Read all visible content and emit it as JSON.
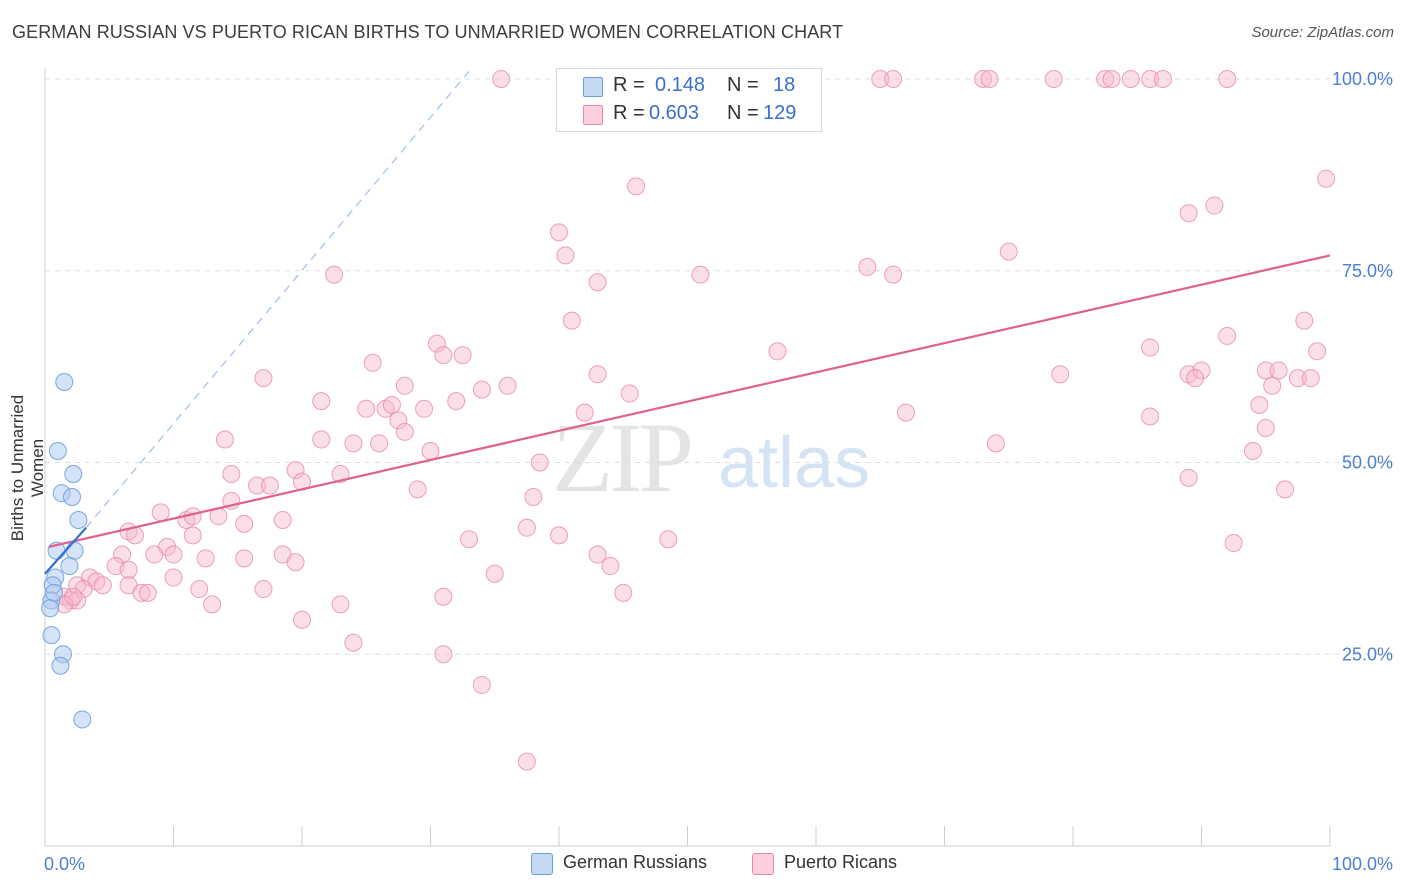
{
  "header": {
    "title": "GERMAN RUSSIAN VS PUERTO RICAN BIRTHS TO UNMARRIED WOMEN CORRELATION CHART",
    "source": "Source: ZipAtlas.com"
  },
  "watermark": {
    "zip": "ZIP",
    "atlas": "atlas"
  },
  "legend_top": {
    "row1": {
      "r_label": "R =",
      "r_value": "0.148",
      "n_label": "N =",
      "n_value": "18"
    },
    "row2": {
      "r_label": "R =",
      "r_value": "0.603",
      "n_label": "N =",
      "n_value": "129"
    }
  },
  "legend_bottom": {
    "series1": "German Russians",
    "series2": "Puerto Ricans"
  },
  "colors": {
    "blue_fill": "#a9c8f0",
    "blue_stroke": "#6a9de0",
    "blue_line": "#2f6fd6",
    "pink_fill": "#f7b8cb",
    "pink_stroke": "#e98aa8",
    "pink_line": "#e06090",
    "axis_label": "#4a7fd1",
    "grid": "#dddddd"
  },
  "chart_data": {
    "type": "scatter",
    "title": "GERMAN RUSSIAN VS PUERTO RICAN BIRTHS TO UNMARRIED WOMEN CORRELATION CHART",
    "xlabel": "",
    "ylabel": "Births to Unmarried Women",
    "xlim": [
      0,
      100
    ],
    "ylim": [
      0,
      102
    ],
    "x_tick_labels": [
      "0.0%",
      "100.0%"
    ],
    "y_tick_labels": [
      "25.0%",
      "50.0%",
      "75.0%",
      "100.0%"
    ],
    "y_ticks": [
      25,
      50,
      75,
      100
    ],
    "series": [
      {
        "name": "German Russians",
        "R": 0.148,
        "N": 18,
        "trend": {
          "x": [
            0,
            3.2
          ],
          "y": [
            35.5,
            41.5
          ],
          "dashed_extension": {
            "x": [
              3.2,
              33
            ],
            "y": [
              41.5,
              101
            ]
          }
        },
        "points": [
          [
            1.5,
            60.5
          ],
          [
            1.0,
            51.5
          ],
          [
            2.2,
            48.5
          ],
          [
            1.3,
            46.0
          ],
          [
            2.1,
            45.5
          ],
          [
            2.6,
            42.5
          ],
          [
            2.3,
            38.5
          ],
          [
            0.9,
            38.5
          ],
          [
            1.9,
            36.5
          ],
          [
            0.8,
            35.0
          ],
          [
            0.6,
            34.0
          ],
          [
            0.5,
            32.0
          ],
          [
            0.7,
            33.0
          ],
          [
            0.4,
            31.0
          ],
          [
            0.5,
            27.5
          ],
          [
            1.4,
            25.0
          ],
          [
            1.2,
            23.5
          ],
          [
            2.9,
            16.5
          ]
        ]
      },
      {
        "name": "Puerto Ricans",
        "R": 0.603,
        "N": 129,
        "trend": {
          "x": [
            0.3,
            100
          ],
          "y": [
            39,
            77
          ]
        },
        "points": [
          [
            35.5,
            100
          ],
          [
            65,
            100
          ],
          [
            66,
            100
          ],
          [
            73,
            100
          ],
          [
            73.5,
            100
          ],
          [
            78.5,
            100
          ],
          [
            82.5,
            100
          ],
          [
            83,
            100
          ],
          [
            84.5,
            100
          ],
          [
            86,
            100
          ],
          [
            87,
            100
          ],
          [
            92,
            100
          ],
          [
            99.7,
            87
          ],
          [
            46,
            86
          ],
          [
            91,
            83.5
          ],
          [
            89,
            82.5
          ],
          [
            40,
            80
          ],
          [
            40.5,
            77
          ],
          [
            75,
            77.5
          ],
          [
            22.5,
            74.5
          ],
          [
            43,
            73.5
          ],
          [
            51,
            74.5
          ],
          [
            64,
            75.5
          ],
          [
            66,
            74.5
          ],
          [
            41,
            68.5
          ],
          [
            92,
            66.5
          ],
          [
            98,
            68.5
          ],
          [
            30.5,
            65.5
          ],
          [
            31,
            64
          ],
          [
            32.5,
            64
          ],
          [
            57,
            64.5
          ],
          [
            86,
            65
          ],
          [
            99,
            64.5
          ],
          [
            25.5,
            63
          ],
          [
            79,
            61.5
          ],
          [
            89,
            61.5
          ],
          [
            90,
            62
          ],
          [
            95,
            62
          ],
          [
            96,
            62
          ],
          [
            97.5,
            61
          ],
          [
            98.5,
            61
          ],
          [
            17,
            61
          ],
          [
            28,
            60
          ],
          [
            36,
            60
          ],
          [
            34,
            59.5
          ],
          [
            43,
            61.5
          ],
          [
            45.5,
            59
          ],
          [
            89.5,
            61
          ],
          [
            95.5,
            60
          ],
          [
            21.5,
            58
          ],
          [
            25,
            57
          ],
          [
            26.5,
            57
          ],
          [
            27,
            57.5
          ],
          [
            29.5,
            57
          ],
          [
            32,
            58
          ],
          [
            42,
            56.5
          ],
          [
            67,
            56.5
          ],
          [
            86,
            56
          ],
          [
            94.5,
            57.5
          ],
          [
            27.5,
            55.5
          ],
          [
            28,
            54
          ],
          [
            14,
            53
          ],
          [
            21.5,
            53
          ],
          [
            24,
            52.5
          ],
          [
            26,
            52.5
          ],
          [
            30,
            51.5
          ],
          [
            74,
            52.5
          ],
          [
            95,
            54.5
          ],
          [
            94,
            51.5
          ],
          [
            38.5,
            50
          ],
          [
            14.5,
            48.5
          ],
          [
            19.5,
            49
          ],
          [
            23,
            48.5
          ],
          [
            16.5,
            47
          ],
          [
            17.5,
            47
          ],
          [
            20,
            47.5
          ],
          [
            89,
            48
          ],
          [
            96.5,
            46.5
          ],
          [
            29,
            46.5
          ],
          [
            38,
            45.5
          ],
          [
            14.5,
            45
          ],
          [
            9,
            43.5
          ],
          [
            11,
            42.5
          ],
          [
            11.5,
            43
          ],
          [
            13.5,
            43
          ],
          [
            15.5,
            42
          ],
          [
            18.5,
            42.5
          ],
          [
            6.5,
            41
          ],
          [
            7,
            40.5
          ],
          [
            11.5,
            40.5
          ],
          [
            37.5,
            41.5
          ],
          [
            40,
            40.5
          ],
          [
            48.5,
            40
          ],
          [
            33,
            40
          ],
          [
            9.5,
            39
          ],
          [
            6,
            38
          ],
          [
            8.5,
            38
          ],
          [
            10,
            38
          ],
          [
            12.5,
            37.5
          ],
          [
            15.5,
            37.5
          ],
          [
            18.5,
            38
          ],
          [
            19.5,
            37
          ],
          [
            43,
            38
          ],
          [
            92.5,
            39.5
          ],
          [
            5.5,
            36.5
          ],
          [
            6.5,
            36
          ],
          [
            10,
            35
          ],
          [
            3.5,
            35
          ],
          [
            4,
            34.5
          ],
          [
            2.5,
            34
          ],
          [
            4.5,
            34
          ],
          [
            6.5,
            34
          ],
          [
            3,
            33.5
          ],
          [
            7.5,
            33
          ],
          [
            12,
            33.5
          ],
          [
            17,
            33.5
          ],
          [
            8,
            33
          ],
          [
            1.5,
            32.5
          ],
          [
            2,
            32
          ],
          [
            2.5,
            32
          ],
          [
            1.5,
            31.5
          ],
          [
            2.2,
            32.5
          ],
          [
            13,
            31.5
          ],
          [
            23,
            31.5
          ],
          [
            31,
            32.5
          ],
          [
            35,
            35.5
          ],
          [
            44,
            36.5
          ],
          [
            45,
            33
          ],
          [
            20,
            29.5
          ],
          [
            24,
            26.5
          ],
          [
            31,
            25
          ],
          [
            34,
            21
          ],
          [
            37.5,
            11
          ]
        ]
      }
    ]
  },
  "axes": {
    "y_tick_labels": [
      "100.0%",
      "75.0%",
      "50.0%",
      "25.0%"
    ],
    "x_left_label": "0.0%",
    "x_right_label": "100.0%"
  }
}
